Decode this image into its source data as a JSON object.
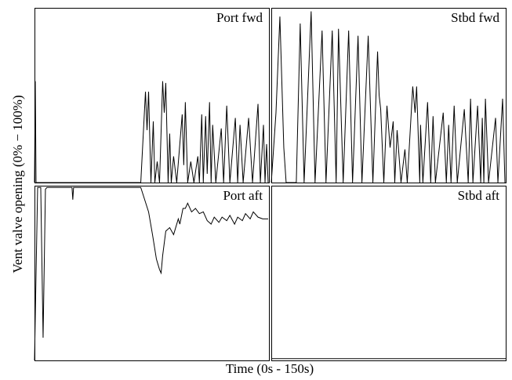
{
  "xlabel": "Time (0s - 150s)",
  "ylabel": "Vent valve opening (0% − 100%)",
  "chart_data": [
    {
      "type": "line",
      "title": "Port fwd",
      "xlim": [
        0,
        150
      ],
      "ylim": [
        0,
        100
      ],
      "x": [
        0,
        0.5,
        1,
        68,
        71,
        72,
        73,
        74.5,
        76,
        77,
        78.5,
        80,
        82,
        83,
        84,
        85.5,
        86.5,
        87.5,
        89,
        91,
        94.5,
        95.5,
        96.5,
        98,
        100,
        102,
        104.5,
        105.5,
        107,
        108,
        109.5,
        110.5,
        112,
        113,
        114,
        116,
        119.5,
        121,
        123,
        125,
        128.5,
        130,
        131.5,
        133.5,
        137,
        139.5,
        143,
        144.5,
        146.5,
        147.5,
        148.5,
        149.5
      ],
      "values": [
        0,
        58,
        0,
        0,
        52,
        30,
        52,
        0,
        35,
        0,
        12,
        0,
        58,
        40,
        57,
        0,
        28,
        0,
        15,
        0,
        39,
        10,
        46,
        0,
        12,
        0,
        15,
        0,
        39,
        0,
        38,
        5,
        46,
        0,
        33,
        0,
        31,
        0,
        44,
        0,
        37,
        0,
        33,
        0,
        37,
        0,
        45,
        0,
        33,
        0,
        22,
        0
      ]
    },
    {
      "type": "line",
      "title": "Stbd fwd",
      "xlim": [
        0,
        150
      ],
      "ylim": [
        0,
        100
      ],
      "x": [
        0,
        3,
        5.5,
        8,
        9.5,
        16,
        18.5,
        21,
        25.5,
        28,
        32.5,
        35,
        39,
        41.5,
        43,
        46,
        49.5,
        52,
        55.5,
        58,
        62,
        65,
        68,
        69,
        70,
        72,
        74,
        76,
        78,
        79,
        80.5,
        83,
        85.5,
        87,
        90.5,
        92,
        93,
        95,
        95.5,
        97,
        100,
        102,
        103.5,
        105,
        110,
        112,
        113.5,
        115,
        117,
        119,
        123.5,
        126,
        127.5,
        129,
        132,
        134,
        135,
        136,
        137,
        139,
        143.5,
        145,
        148,
        149.5
      ],
      "values": [
        0,
        40,
        95,
        20,
        0,
        0,
        91,
        0,
        98,
        0,
        87,
        0,
        87,
        0,
        88,
        0,
        87,
        0,
        84,
        0,
        84,
        0,
        75,
        50,
        42,
        0,
        44,
        20,
        35,
        0,
        30,
        0,
        19,
        0,
        55,
        40,
        55,
        0,
        33,
        0,
        46,
        0,
        38,
        0,
        40,
        0,
        33,
        0,
        44,
        0,
        42,
        0,
        48,
        0,
        44,
        0,
        37,
        0,
        48,
        0,
        37,
        0,
        48,
        0
      ]
    },
    {
      "type": "line",
      "title": "Port aft",
      "xlim": [
        0,
        150
      ],
      "ylim": [
        0,
        100
      ],
      "x": [
        0,
        2,
        4,
        5.5,
        7,
        8,
        24,
        24.5,
        25,
        68,
        70.5,
        73,
        75.5,
        78,
        80,
        81,
        82,
        84,
        86.5,
        89,
        92,
        93,
        95,
        96.5,
        98,
        100.5,
        103,
        105.5,
        108,
        110.5,
        113,
        115,
        118,
        120,
        123,
        125,
        128,
        130,
        133,
        135,
        138,
        140,
        143,
        146,
        149.5
      ],
      "values": [
        0,
        99,
        99,
        13,
        98,
        99,
        99,
        92,
        99,
        99,
        92,
        85,
        72,
        58,
        52,
        50,
        60,
        74,
        76,
        72,
        81,
        78,
        87,
        87,
        90,
        85,
        87,
        84,
        85,
        80,
        78,
        82,
        79,
        82,
        80,
        83,
        78,
        82,
        80,
        84,
        81,
        85,
        82,
        81,
        81
      ]
    },
    {
      "type": "line",
      "title": "Stbd aft",
      "xlim": [
        0,
        150
      ],
      "ylim": [
        0,
        100
      ],
      "x": [
        0,
        150
      ],
      "values": [
        1,
        1
      ]
    }
  ]
}
